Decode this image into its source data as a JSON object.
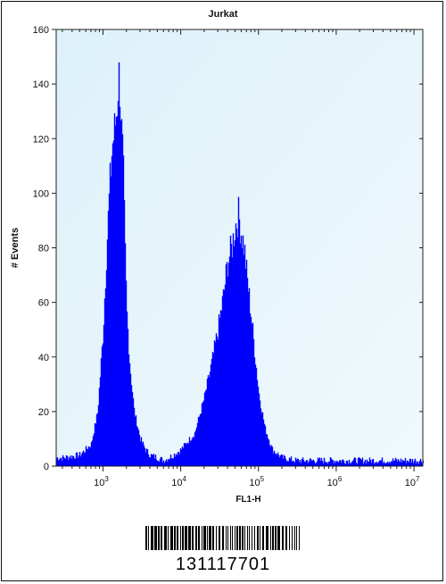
{
  "chart_data": {
    "type": "area",
    "title": "Jurkat",
    "xlabel": "FL1-H",
    "ylabel": "# Events",
    "x_scale": "log",
    "xlim": [
      250,
      13000000
    ],
    "ylim": [
      0,
      160
    ],
    "y_ticks": [
      "0",
      "20",
      "40",
      "60",
      "80",
      "100",
      "120",
      "140",
      "160"
    ],
    "x_ticks": [
      {
        "base": "10",
        "exp": "3"
      },
      {
        "base": "10",
        "exp": "4"
      },
      {
        "base": "10",
        "exp": "5"
      },
      {
        "base": "10",
        "exp": "6"
      },
      {
        "base": "10",
        "exp": "7"
      }
    ],
    "series": [
      {
        "color": "#0000ff",
        "x": [
          300,
          500,
          700,
          850,
          1000,
          1100,
          1200,
          1300,
          1400,
          1500,
          1550,
          1600,
          1650,
          1700,
          1800,
          1900,
          2000,
          2200,
          2500,
          3000,
          3500,
          4000,
          5000,
          6000,
          8000,
          10000,
          15000,
          20000,
          25000,
          30000,
          35000,
          40000,
          45000,
          50000,
          55000,
          60000,
          65000,
          70000,
          80000,
          90000,
          100000,
          120000,
          150000,
          200000,
          300000,
          1000000,
          10000000
        ],
        "y": [
          3,
          4,
          8,
          20,
          50,
          78,
          100,
          117,
          123,
          132,
          140,
          143,
          138,
          125,
          110,
          80,
          57,
          37,
          20,
          10,
          6,
          4,
          3,
          2,
          4,
          6,
          12,
          25,
          38,
          50,
          62,
          75,
          80,
          88,
          92,
          85,
          80,
          70,
          55,
          40,
          27,
          14,
          6,
          3,
          2,
          2,
          2
        ]
      }
    ],
    "plot_background": "#e8f6fb",
    "fill_color": "#0000ff"
  },
  "barcode": {
    "number": "131117701"
  }
}
